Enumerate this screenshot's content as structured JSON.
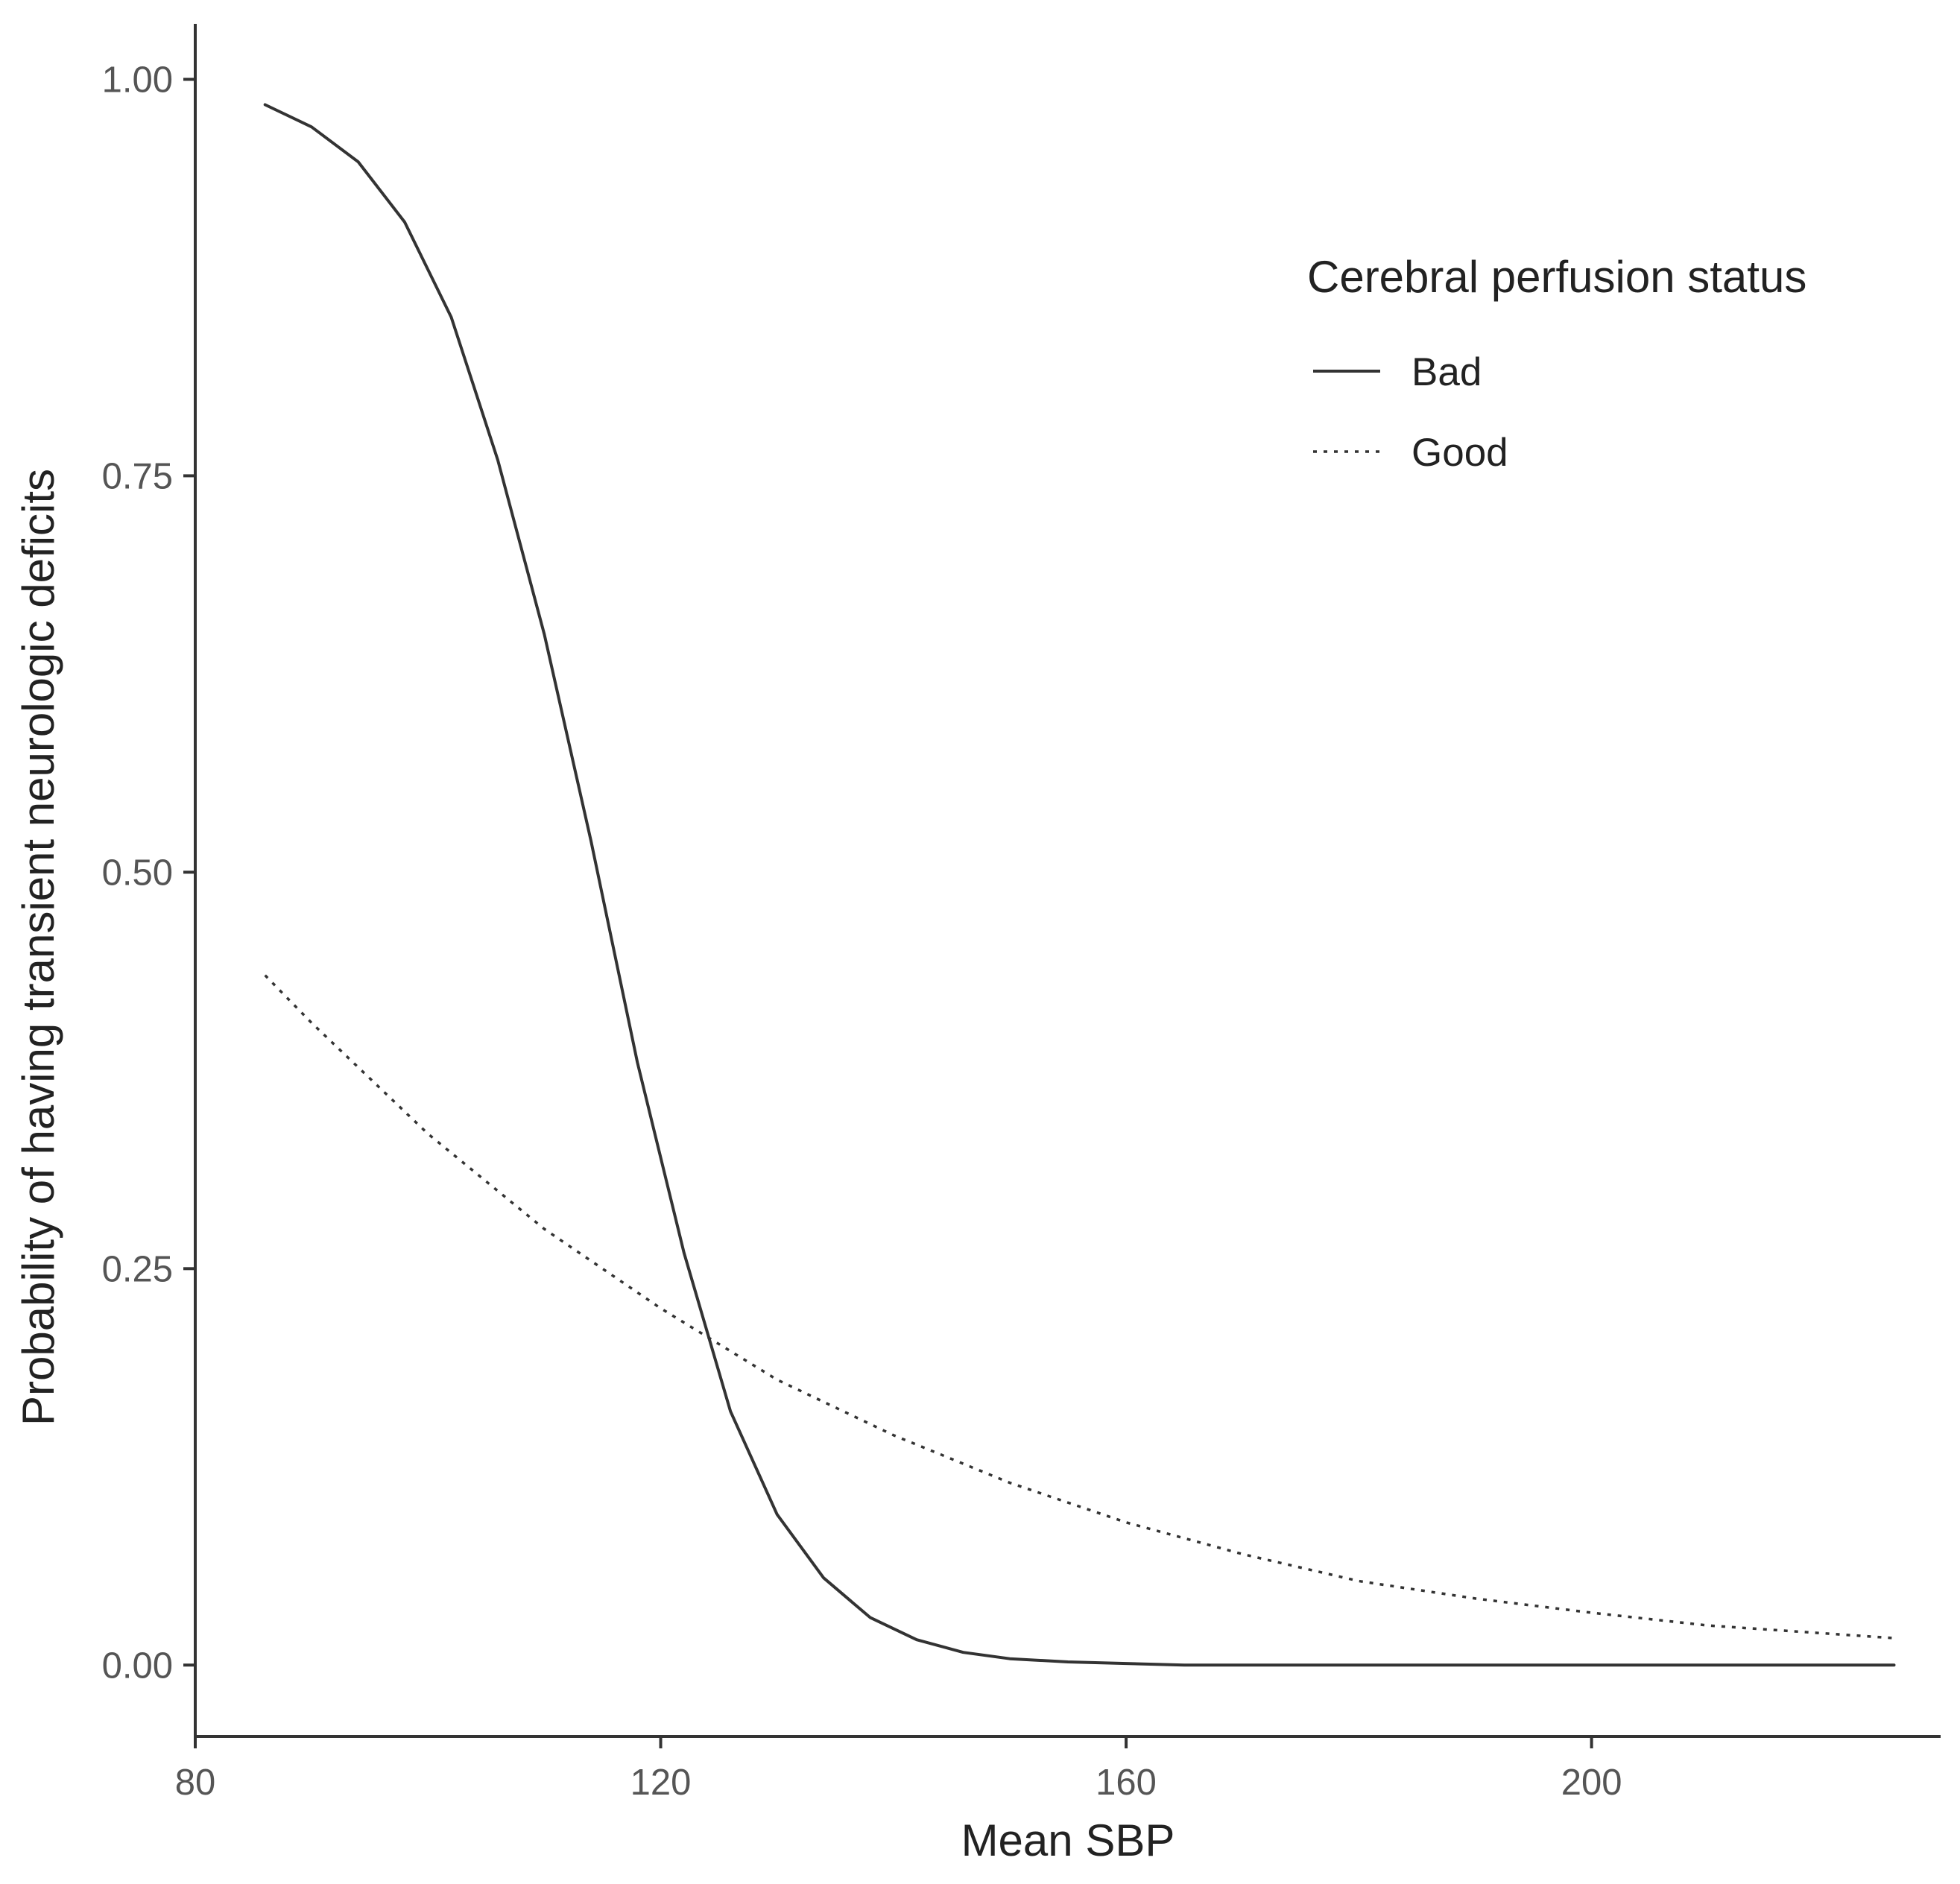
{
  "chart_data": {
    "type": "line",
    "title": "",
    "xlabel": "Mean SBP",
    "ylabel": "Probability of having transient neurologic deficits",
    "xlim": [
      80,
      230
    ],
    "ylim": [
      -0.045,
      1.035
    ],
    "x_ticks": [
      80,
      120,
      160,
      200
    ],
    "x_tick_labels": [
      "80",
      "120",
      "160",
      "200"
    ],
    "y_ticks": [
      0,
      0.25,
      0.5,
      0.75,
      1.0
    ],
    "y_tick_labels": [
      "0.00",
      "0.25",
      "0.50",
      "0.75",
      "1.00"
    ],
    "grid": false,
    "legend": {
      "title": "Cerebral perfusion status",
      "position": "top-right"
    },
    "series": [
      {
        "name": "Bad",
        "line_style": "solid",
        "color": "#333333",
        "x": [
          86,
          90,
          94,
          98,
          102,
          106,
          110,
          114,
          118,
          122,
          126,
          130,
          134,
          138,
          142,
          146,
          150,
          155,
          160,
          165,
          170,
          180,
          190,
          200,
          210,
          220,
          226
        ],
        "y": [
          0.984,
          0.97,
          0.948,
          0.91,
          0.85,
          0.76,
          0.65,
          0.52,
          0.38,
          0.26,
          0.16,
          0.095,
          0.055,
          0.03,
          0.016,
          0.008,
          0.004,
          0.002,
          0.001,
          0.0,
          0.0,
          0.0,
          0.0,
          0.0,
          0.0,
          0.0,
          0.0
        ]
      },
      {
        "name": "Good",
        "line_style": "dotted",
        "color": "#333333",
        "x": [
          86,
          90,
          100,
          110,
          120,
          130,
          140,
          150,
          160,
          170,
          180,
          190,
          200,
          210,
          220,
          226
        ],
        "y": [
          0.435,
          0.405,
          0.335,
          0.275,
          0.225,
          0.18,
          0.145,
          0.115,
          0.09,
          0.07,
          0.053,
          0.042,
          0.033,
          0.025,
          0.02,
          0.017
        ]
      }
    ]
  }
}
